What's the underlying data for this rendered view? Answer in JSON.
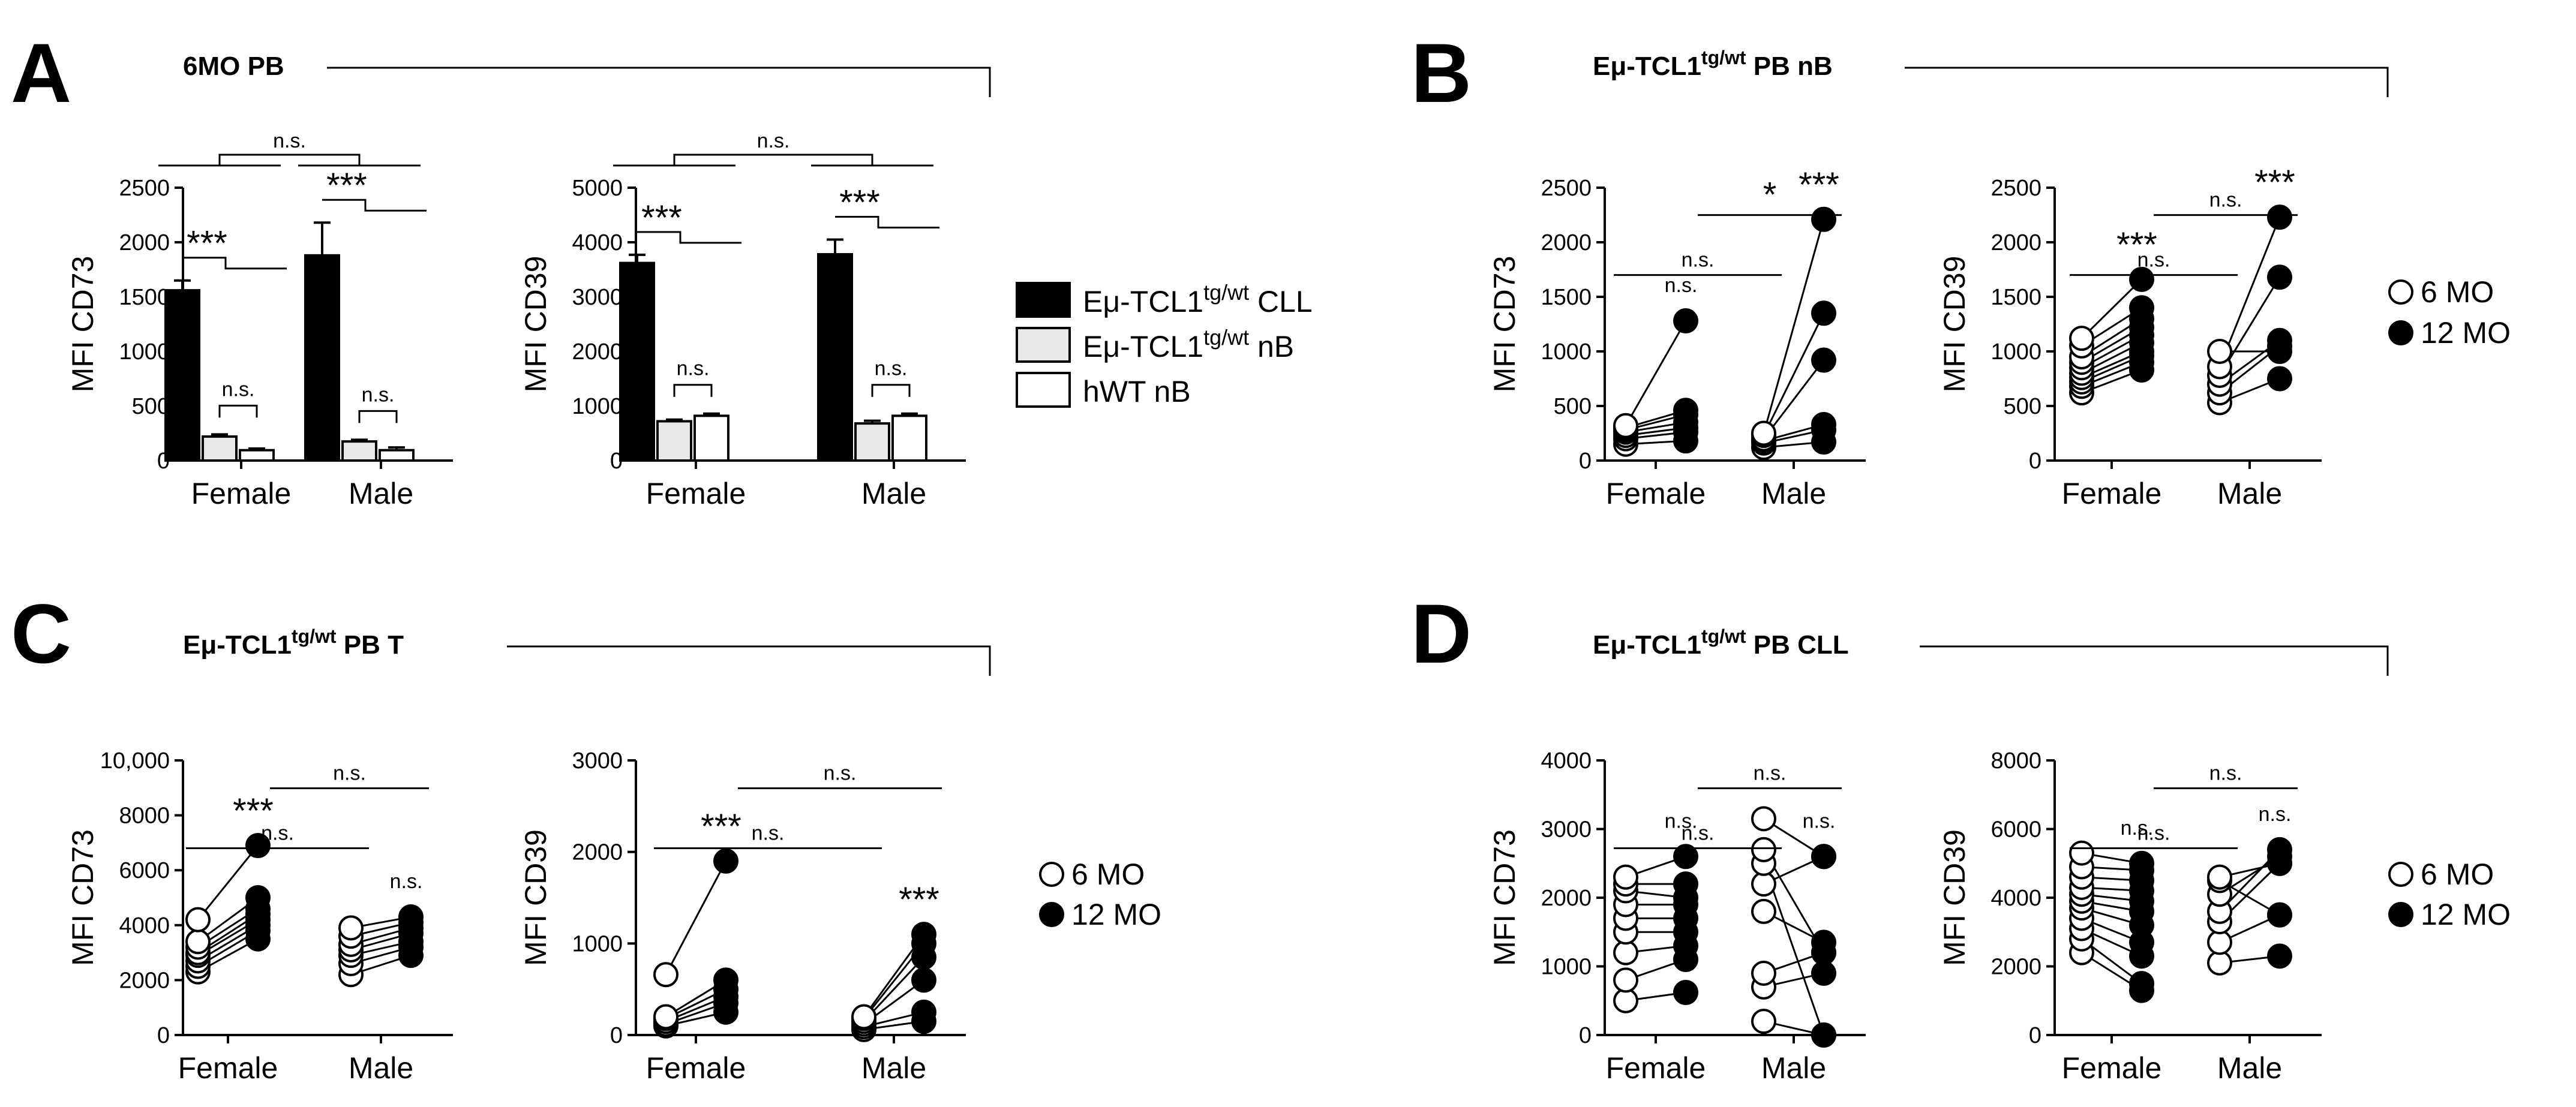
{
  "figure": {
    "panels": [
      {
        "label": "A",
        "title": "6MO PB"
      },
      {
        "label": "B",
        "title_main": "Eμ-TCL1",
        "title_sup": "tg/wt",
        "title_rest": " PB nB"
      },
      {
        "label": "C",
        "title_main": "Eμ-TCL1",
        "title_sup": "tg/wt",
        "title_rest": " PB T"
      },
      {
        "label": "D",
        "title_main": "Eμ-TCL1",
        "title_sup": "tg/wt",
        "title_rest": " PB CLL"
      }
    ],
    "legend_groups": [
      {
        "main": "Eμ-TCL1",
        "sup": "tg/wt",
        "rest": " CLL",
        "color": "#000000"
      },
      {
        "main": "Eμ-TCL1",
        "sup": "tg/wt",
        "rest": " nB",
        "color": "#e8e8e8"
      },
      {
        "main": "hWT nB",
        "sup": "",
        "rest": "",
        "color": "#ffffff"
      }
    ],
    "legend_timepoints": [
      {
        "label": "6 MO",
        "fill": "#ffffff"
      },
      {
        "label": "12 MO",
        "fill": "#000000"
      }
    ]
  },
  "chart_data": [
    {
      "id": "A_CD73",
      "panel": "A",
      "type": "bar",
      "ylabel": "MFI CD73",
      "categories": [
        "Female",
        "Male"
      ],
      "ylim": [
        0,
        2500
      ],
      "yticks": [
        "0",
        "500",
        "1000",
        "1500",
        "2000",
        "2500"
      ],
      "series": [
        {
          "name": "Eμ-TCL1 tg/wt CLL",
          "values": [
            1560,
            1880
          ],
          "errors": [
            90,
            300
          ]
        },
        {
          "name": "Eμ-TCL1 tg/wt nB",
          "values": [
            220,
            175
          ],
          "errors": [
            20,
            15
          ]
        },
        {
          "name": "hWT nB",
          "values": [
            95,
            95
          ],
          "errors": [
            15,
            25
          ]
        }
      ],
      "annotations": [
        "***",
        "n.s.",
        "***",
        "n.s.",
        "n.s."
      ]
    },
    {
      "id": "A_CD39",
      "panel": "A",
      "type": "bar",
      "ylabel": "MFI CD39",
      "categories": [
        "Female",
        "Male"
      ],
      "ylim": [
        0,
        5000
      ],
      "yticks": [
        "0",
        "1000",
        "2000",
        "3000",
        "4000",
        "5000"
      ],
      "series": [
        {
          "name": "Eμ-TCL1 tg/wt CLL",
          "values": [
            3620,
            3780
          ],
          "errors": [
            150,
            270
          ]
        },
        {
          "name": "Eμ-TCL1 tg/wt nB",
          "values": [
            720,
            680
          ],
          "errors": [
            30,
            50
          ]
        },
        {
          "name": "hWT nB",
          "values": [
            820,
            820
          ],
          "errors": [
            40,
            40
          ]
        }
      ],
      "annotations": [
        "***",
        "n.s.",
        "***",
        "n.s.",
        "n.s."
      ]
    },
    {
      "id": "B_CD73",
      "panel": "B",
      "type": "scatter",
      "ylabel": "MFI CD73",
      "categories": [
        "Female",
        "Male"
      ],
      "ylim": [
        0,
        2500
      ],
      "yticks": [
        "0",
        "500",
        "1000",
        "1500",
        "2000",
        "2500"
      ],
      "pairs": [
        {
          "category": "Female",
          "mo6": [
            150,
            200,
            230,
            260,
            280,
            300,
            320
          ],
          "mo12": [
            180,
            260,
            300,
            350,
            420,
            460,
            1280
          ]
        },
        {
          "category": "Male",
          "mo6": [
            120,
            160,
            180,
            200,
            230,
            250
          ],
          "mo12": [
            170,
            280,
            330,
            920,
            1350,
            2210
          ]
        }
      ],
      "annotations": [
        "n.s.",
        "***",
        "n.s.",
        "*"
      ]
    },
    {
      "id": "B_CD39",
      "panel": "B",
      "type": "scatter",
      "ylabel": "MFI CD39",
      "categories": [
        "Female",
        "Male"
      ],
      "ylim": [
        0,
        2500
      ],
      "yticks": [
        "0",
        "500",
        "1000",
        "1500",
        "2000",
        "2500"
      ],
      "pairs": [
        {
          "category": "Female",
          "mo6": [
            620,
            680,
            720,
            760,
            800,
            850,
            900,
            950,
            1050,
            1120
          ],
          "mo12": [
            830,
            900,
            960,
            1000,
            1080,
            1150,
            1220,
            1300,
            1400,
            1660
          ]
        },
        {
          "category": "Male",
          "mo6": [
            530,
            620,
            700,
            780,
            860,
            1000
          ],
          "mo12": [
            750,
            1050,
            1100,
            1680,
            2230,
            1000
          ]
        }
      ],
      "annotations": [
        "***",
        "***",
        "n.s.",
        "n.s."
      ]
    },
    {
      "id": "C_CD73",
      "panel": "C",
      "type": "scatter",
      "ylabel": "MFI CD73",
      "categories": [
        "Female",
        "Male"
      ],
      "ylim": [
        0,
        10000
      ],
      "yticks": [
        "0",
        "2000",
        "4000",
        "6000",
        "8000",
        "10,000"
      ],
      "pairs": [
        {
          "category": "Female",
          "mo6": [
            2300,
            2500,
            2700,
            2900,
            3000,
            3200,
            3400,
            4200
          ],
          "mo12": [
            3500,
            3800,
            4000,
            4200,
            4400,
            4600,
            5000,
            6900
          ]
        },
        {
          "category": "Male",
          "mo6": [
            2200,
            2600,
            2900,
            3100,
            3300,
            3600,
            3900
          ],
          "mo12": [
            2900,
            3200,
            3400,
            3700,
            3900,
            4100,
            4300
          ]
        }
      ],
      "annotations": [
        "***",
        "n.s.",
        "n.s.",
        "n.s."
      ]
    },
    {
      "id": "C_CD39",
      "panel": "C",
      "type": "scatter",
      "ylabel": "MFI CD39",
      "categories": [
        "Female",
        "Male"
      ],
      "ylim": [
        0,
        3000
      ],
      "yticks": [
        "0",
        "1000",
        "2000",
        "3000"
      ],
      "pairs": [
        {
          "category": "Female",
          "mo6": [
            100,
            120,
            150,
            180,
            200,
            660
          ],
          "mo12": [
            250,
            350,
            420,
            500,
            600,
            1900
          ]
        },
        {
          "category": "Male",
          "mo6": [
            60,
            90,
            120,
            150,
            180,
            200
          ],
          "mo12": [
            150,
            250,
            600,
            850,
            1000,
            1100
          ]
        }
      ],
      "annotations": [
        "***",
        "***",
        "n.s.",
        "n.s."
      ]
    },
    {
      "id": "D_CD73",
      "panel": "D",
      "type": "scatter",
      "ylabel": "MFI CD73",
      "categories": [
        "Female",
        "Male"
      ],
      "ylim": [
        0,
        4000
      ],
      "yticks": [
        "0",
        "1000",
        "2000",
        "3000",
        "4000"
      ],
      "pairs": [
        {
          "category": "Female",
          "mo6": [
            500,
            800,
            1200,
            1500,
            1700,
            1900,
            2100,
            2200,
            2300
          ],
          "mo12": [
            620,
            1100,
            1300,
            1500,
            1700,
            1900,
            2000,
            2200,
            2600
          ]
        },
        {
          "category": "Male",
          "mo6": [
            200,
            700,
            900,
            1800,
            2200,
            2500,
            2700,
            3150
          ],
          "mo12": [
            0,
            900,
            1200,
            1350,
            2600,
            0,
            1200,
            2600
          ]
        }
      ],
      "annotations": [
        "n.s.",
        "n.s.",
        "n.s.",
        "n.s."
      ]
    },
    {
      "id": "D_CD39",
      "panel": "D",
      "type": "scatter",
      "ylabel": "MFI CD39",
      "categories": [
        "Female",
        "Male"
      ],
      "ylim": [
        0,
        8000
      ],
      "yticks": [
        "0",
        "2000",
        "4000",
        "6000",
        "8000"
      ],
      "pairs": [
        {
          "category": "Female",
          "mo6": [
            2400,
            2800,
            3100,
            3400,
            3700,
            3900,
            4100,
            4300,
            4600,
            4900,
            5300
          ],
          "mo12": [
            1300,
            1500,
            2300,
            2700,
            3200,
            3600,
            3900,
            4200,
            4500,
            4800,
            5000
          ]
        },
        {
          "category": "Male",
          "mo6": [
            2100,
            2700,
            3300,
            3600,
            4100,
            4500,
            4600
          ],
          "mo12": [
            2300,
            3500,
            5000,
            5400,
            5200,
            3500,
            5000
          ]
        }
      ],
      "annotations": [
        "n.s.",
        "n.s.",
        "n.s.",
        "n.s."
      ]
    }
  ]
}
